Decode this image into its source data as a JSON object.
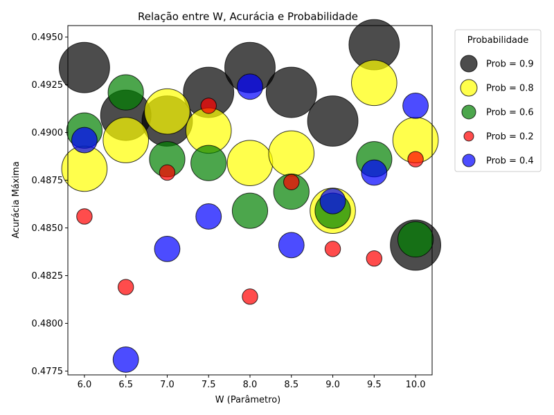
{
  "chart_data": {
    "type": "scatter",
    "title": "Relação entre W, Acurácia e Probabilidade",
    "xlabel": "W (Parâmetro)",
    "ylabel": "Acurácia Máxima",
    "xlim": [
      5.8,
      10.2
    ],
    "ylim": [
      0.4773,
      0.4956
    ],
    "x_ticks": [
      "6.0",
      "6.5",
      "7.0",
      "7.5",
      "8.0",
      "8.5",
      "9.0",
      "9.5",
      "10.0"
    ],
    "y_ticks": [
      "0.4775",
      "0.4800",
      "0.4825",
      "0.4850",
      "0.4875",
      "0.4900",
      "0.4925",
      "0.4950"
    ],
    "grid": false,
    "legend_title": "Probabilidade",
    "legend_position": "outside-top-right",
    "series": [
      {
        "name": "Prob = 0.9",
        "prob": 0.9,
        "color": "#000000",
        "x": [
          6.0,
          6.5,
          7.0,
          7.5,
          8.0,
          8.5,
          9.0,
          9.5,
          10.0
        ],
        "y": [
          0.4934,
          0.4909,
          0.4906,
          0.4921,
          0.4934,
          0.4921,
          0.4906,
          0.4946,
          0.4841
        ]
      },
      {
        "name": "Prob = 0.8",
        "prob": 0.8,
        "color": "#ffff00",
        "x": [
          6.0,
          6.5,
          7.0,
          7.5,
          8.0,
          8.5,
          9.0,
          9.5,
          10.0
        ],
        "y": [
          0.4881,
          0.4896,
          0.4911,
          0.4901,
          0.4884,
          0.4889,
          0.4859,
          0.4926,
          0.4896
        ]
      },
      {
        "name": "Prob = 0.6",
        "prob": 0.6,
        "color": "#008000",
        "x": [
          6.0,
          6.5,
          7.0,
          7.5,
          8.0,
          8.5,
          9.0,
          9.5,
          10.0
        ],
        "y": [
          0.4901,
          0.4921,
          0.4886,
          0.4884,
          0.4859,
          0.4869,
          0.4859,
          0.4886,
          0.4844
        ]
      },
      {
        "name": "Prob = 0.2",
        "prob": 0.2,
        "color": "#ff0000",
        "x": [
          6.0,
          6.5,
          7.0,
          7.5,
          8.0,
          8.5,
          9.0,
          9.5,
          10.0
        ],
        "y": [
          0.4856,
          0.4819,
          0.4879,
          0.4914,
          0.4814,
          0.4874,
          0.4839,
          0.4834,
          0.4886
        ]
      },
      {
        "name": "Prob = 0.4",
        "prob": 0.4,
        "color": "#0000ff",
        "x": [
          6.0,
          6.5,
          7.0,
          7.5,
          8.0,
          8.5,
          9.0,
          9.5,
          10.0
        ],
        "y": [
          0.4896,
          0.4781,
          0.4839,
          0.4856,
          0.4924,
          0.4841,
          0.4864,
          0.4879,
          0.4914
        ]
      }
    ]
  }
}
